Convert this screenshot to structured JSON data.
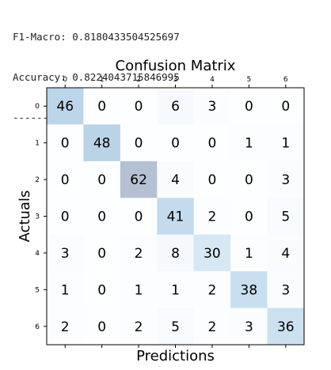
{
  "console": {
    "f1_line": "F1-Macro: 0.8180433504525697",
    "accuracy_line": "Accuracy: 0.8224043715846995",
    "separator": "--------------------------------------"
  },
  "chart_data": {
    "type": "heatmap",
    "title": "Confusion Matrix",
    "xlabel": "Predictions",
    "ylabel": "Actuals",
    "x_ticks": [
      "0",
      "1",
      "2",
      "3",
      "4",
      "5",
      "6"
    ],
    "y_ticks": [
      "0",
      "1",
      "2",
      "3",
      "4",
      "5",
      "6"
    ],
    "x_tick_position": "top",
    "colormap": "Blues",
    "color_alpha": 0.3,
    "grid": false,
    "matrix": [
      [
        46,
        0,
        0,
        6,
        3,
        0,
        0
      ],
      [
        0,
        48,
        0,
        0,
        0,
        1,
        1
      ],
      [
        0,
        0,
        62,
        4,
        0,
        0,
        3
      ],
      [
        0,
        0,
        0,
        41,
        2,
        0,
        5
      ],
      [
        3,
        0,
        2,
        8,
        30,
        1,
        4
      ],
      [
        1,
        0,
        1,
        1,
        2,
        38,
        3
      ],
      [
        2,
        0,
        2,
        5,
        2,
        3,
        36
      ]
    ]
  }
}
